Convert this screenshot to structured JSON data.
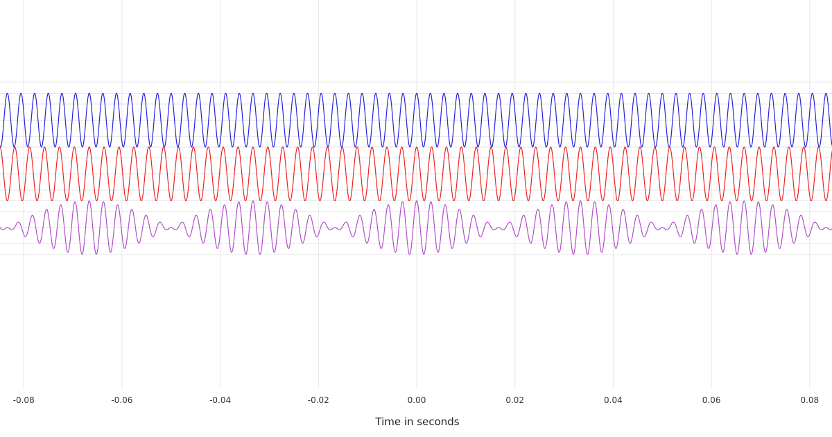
{
  "chart_data": {
    "type": "line",
    "title": "",
    "xlabel": "Time in seconds",
    "ylabel": "",
    "xlim": [
      -0.085,
      0.085
    ],
    "ylim": [
      -3.6,
      3.6
    ],
    "x_ticks": [
      -0.08,
      -0.06,
      -0.04,
      -0.02,
      0.0,
      0.02,
      0.04,
      0.06,
      0.08
    ],
    "x_tick_labels": [
      "-0.08",
      "-0.06",
      "-0.04",
      "-0.02",
      "0.00",
      "0.02",
      "0.04",
      "0.06",
      "0.08"
    ],
    "y_gridlines": [
      3.42,
      3.0,
      2.6,
      2.0,
      1.4,
      1.0,
      0.6,
      0.0,
      -0.6,
      -1.0,
      -1.4,
      -2.0,
      -2.6,
      -3.0
    ],
    "grid": true,
    "legend": "none",
    "series": [
      {
        "color": "#2222dd",
        "function": "offset + amplitude * cos(2*pi*frequency*t)",
        "frequency": 360,
        "amplitude": 1,
        "offset": 2
      },
      {
        "color": "#ee2222",
        "function": "offset + amplitude * cos(2*pi*frequency*t)",
        "frequency": 330,
        "amplitude": 1,
        "offset": 0
      },
      {
        "color": "#b04fc8",
        "function": "offset + 0.5*(cos(2*pi*360*t) + cos(2*pi*330*t))",
        "components_hz": [
          360,
          330
        ],
        "amplitude": 1,
        "offset": -2
      }
    ]
  }
}
